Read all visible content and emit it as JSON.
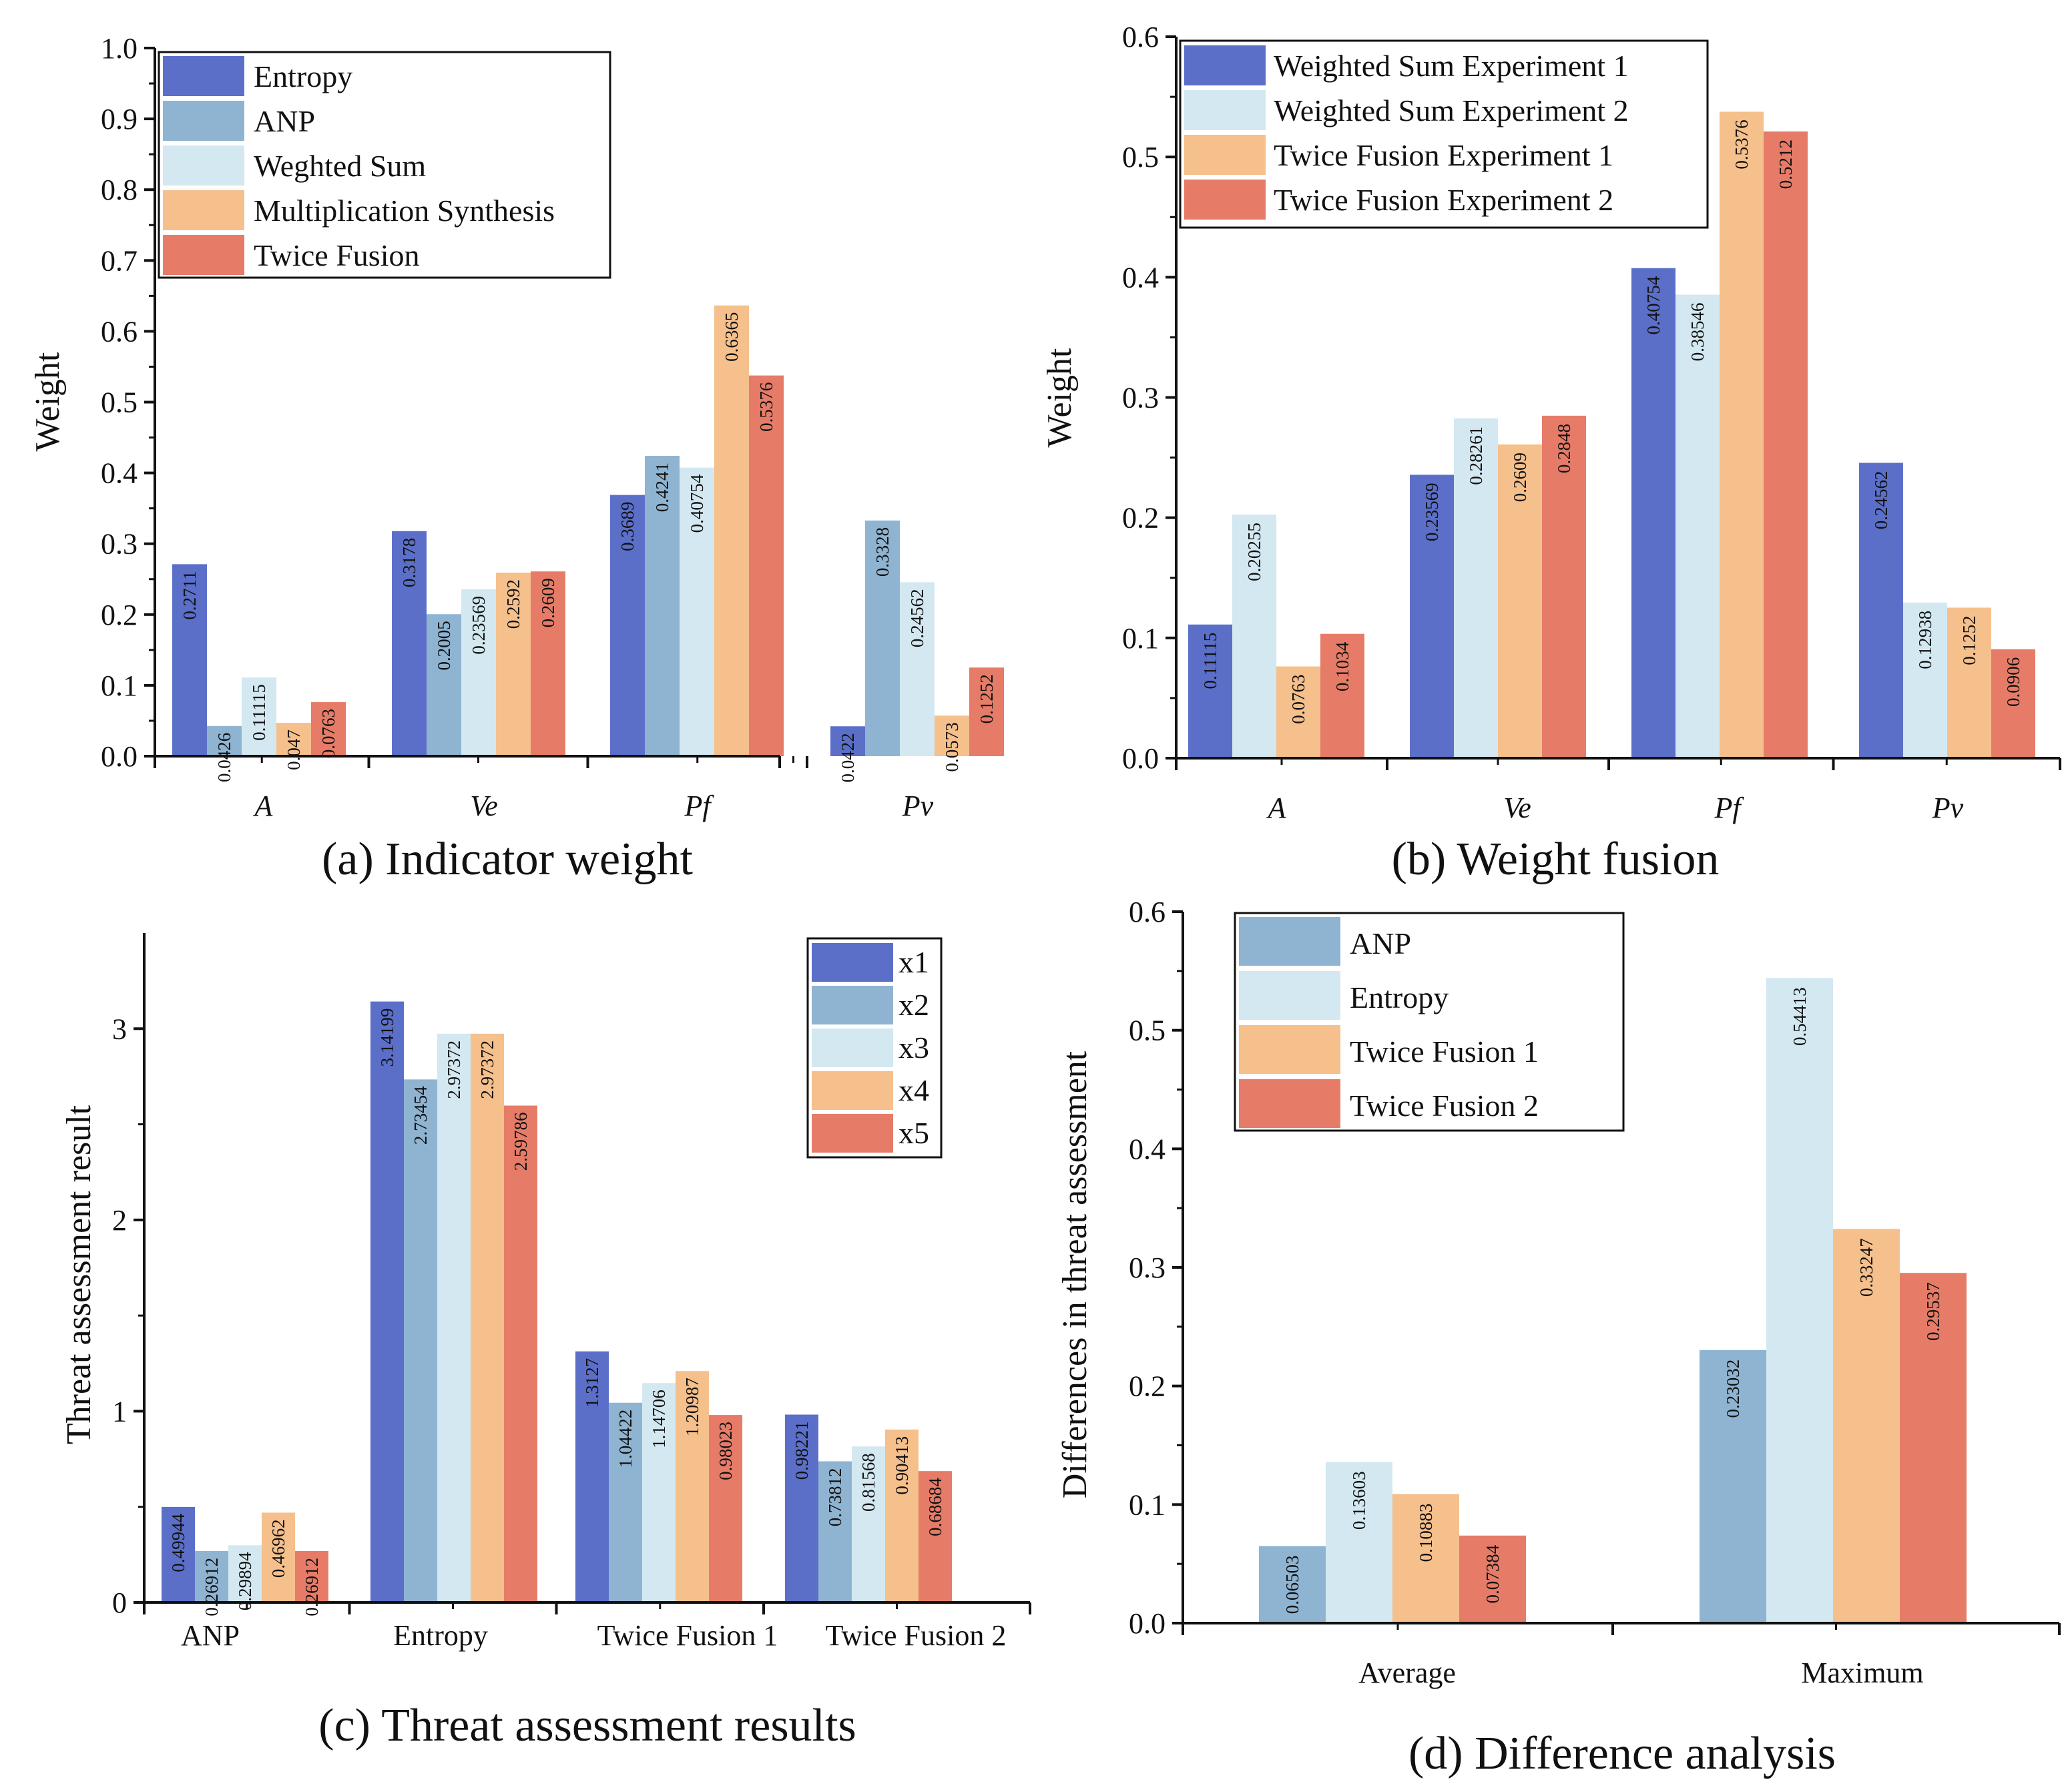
{
  "palette": {
    "blue": "#5b6fc9",
    "steel": "#8fb4d2",
    "pale": "#d3e8f0",
    "peach": "#f5c08c",
    "coral": "#e67c68"
  },
  "chart_data": [
    {
      "id": "a",
      "type": "bar",
      "title": "(a)  Indicator weight",
      "xlabel": "",
      "ylabel": "Weight",
      "ylim": [
        0,
        1.0
      ],
      "yticks": [
        "0.0",
        "0.1",
        "0.2",
        "0.3",
        "0.4",
        "0.5",
        "0.6",
        "0.7",
        "0.8",
        "0.9",
        "1.0"
      ],
      "grid": false,
      "legend_position": "top-left",
      "categories": [
        "A",
        "Ve",
        "Pf",
        "Pv"
      ],
      "series": [
        {
          "name": "Entropy",
          "color": "#5b6fc9",
          "values": [
            0.2711,
            0.3178,
            0.3689,
            0.0422
          ],
          "labels": [
            "0.2711",
            "0.3178",
            "0.3689",
            "0.0422"
          ]
        },
        {
          "name": "ANP",
          "color": "#8fb4d2",
          "values": [
            0.0426,
            0.2005,
            0.4241,
            0.3328
          ],
          "labels": [
            "0.0426",
            "0.2005",
            "0.4241",
            "0.3328"
          ]
        },
        {
          "name": "Weghted Sum",
          "color": "#d3e8f0",
          "values": [
            0.11115,
            0.23569,
            0.40754,
            0.24562
          ],
          "labels": [
            "0.11115",
            "0.23569",
            "0.40754",
            "0.24562"
          ]
        },
        {
          "name": "Multiplication Synthesis",
          "color": "#f5c08c",
          "values": [
            0.047,
            0.2592,
            0.6365,
            0.0573
          ],
          "labels": [
            "0.047",
            "0.2592",
            "0.6365",
            "0.0573"
          ]
        },
        {
          "name": "Twice Fusion",
          "color": "#e67c68",
          "values": [
            0.0763,
            0.2609,
            0.5376,
            0.1252
          ],
          "labels": [
            "0.0763",
            "0.2609",
            "0.5376",
            "0.1252"
          ]
        }
      ]
    },
    {
      "id": "b",
      "type": "bar",
      "title": "(b) Weight fusion",
      "xlabel": "",
      "ylabel": "Weight",
      "ylim": [
        0,
        0.6
      ],
      "yticks": [
        "0.0",
        "0.1",
        "0.2",
        "0.3",
        "0.4",
        "0.5",
        "0.6"
      ],
      "grid": false,
      "legend_position": "top-left",
      "categories": [
        "A",
        "Ve",
        "Pf",
        "Pv"
      ],
      "series": [
        {
          "name": "Weighted Sum Experiment 1",
          "color": "#5b6fc9",
          "values": [
            0.11115,
            0.23569,
            0.40754,
            0.24562
          ],
          "labels": [
            "0.11115",
            "0.23569",
            "0.40754",
            "0.24562"
          ]
        },
        {
          "name": "Weighted Sum Experiment 2",
          "color": "#d3e8f0",
          "values": [
            0.20255,
            0.28261,
            0.38546,
            0.12938
          ],
          "labels": [
            "0.20255",
            "0.28261",
            "0.38546",
            "0.12938"
          ]
        },
        {
          "name": "Twice Fusion Experiment 1",
          "color": "#f5c08c",
          "values": [
            0.0763,
            0.2609,
            0.5376,
            0.1252
          ],
          "labels": [
            "0.0763",
            "0.2609",
            "0.5376",
            "0.1252"
          ]
        },
        {
          "name": "Twice Fusion Experiment 2",
          "color": "#e67c68",
          "values": [
            0.1034,
            0.2848,
            0.5212,
            0.0906
          ],
          "labels": [
            "0.1034",
            "0.2848",
            "0.5212",
            "0.0906"
          ]
        }
      ]
    },
    {
      "id": "c",
      "type": "bar",
      "title": "(c) Threat assessment results",
      "xlabel": "",
      "ylabel": "Threat assessment result",
      "ylim": [
        0,
        3.5
      ],
      "yticks": [
        "0",
        "1",
        "2",
        "3"
      ],
      "grid": false,
      "legend_position": "top-right",
      "categories": [
        "ANP",
        "Entropy",
        "Twice Fusion 1",
        "Twice Fusion 2"
      ],
      "series": [
        {
          "name": "x1",
          "color": "#5b6fc9",
          "values": [
            0.49944,
            3.14199,
            1.3127,
            0.98221
          ],
          "labels": [
            "0.49944",
            "3.14199",
            "1.3127",
            "0.98221"
          ]
        },
        {
          "name": "x2",
          "color": "#8fb4d2",
          "values": [
            0.26912,
            2.73454,
            1.04422,
            0.73812
          ],
          "labels": [
            "0.26912",
            "2.73454",
            "1.04422",
            "0.73812"
          ]
        },
        {
          "name": "x3",
          "color": "#d3e8f0",
          "values": [
            0.29894,
            2.97372,
            1.14706,
            0.81568
          ],
          "labels": [
            "0.29894",
            "2.97372",
            "1.14706",
            "0.81568"
          ]
        },
        {
          "name": "x4",
          "color": "#f5c08c",
          "values": [
            0.46962,
            2.97372,
            1.20987,
            0.90413
          ],
          "labels": [
            "0.46962",
            "2.97372",
            "1.20987",
            "0.90413"
          ]
        },
        {
          "name": "x5",
          "color": "#e67c68",
          "values": [
            0.26912,
            2.59786,
            0.98023,
            0.68684
          ],
          "labels": [
            "0.26912",
            "2.59786",
            "0.98023",
            "0.68684"
          ]
        }
      ]
    },
    {
      "id": "d",
      "type": "bar",
      "title": "(d) Difference analysis",
      "xlabel": "",
      "ylabel": "Differences in threat assessment",
      "ylim": [
        0,
        0.6
      ],
      "yticks": [
        "0.0",
        "0.1",
        "0.2",
        "0.3",
        "0.4",
        "0.5",
        "0.6"
      ],
      "grid": false,
      "legend_position": "top-left",
      "categories": [
        "Average",
        "Maximum"
      ],
      "series": [
        {
          "name": "ANP",
          "color": "#8fb4d2",
          "values": [
            0.06503,
            0.23032
          ],
          "labels": [
            "0.06503",
            "0.23032"
          ]
        },
        {
          "name": "Entropy",
          "color": "#d3e8f0",
          "values": [
            0.13603,
            0.54413
          ],
          "labels": [
            "0.13603",
            "0.54413"
          ]
        },
        {
          "name": "Twice Fusion 1",
          "color": "#f5c08c",
          "values": [
            0.10883,
            0.33247
          ],
          "labels": [
            "0.10883",
            "0.33247"
          ]
        },
        {
          "name": "Twice Fusion 2",
          "color": "#e67c68",
          "values": [
            0.07384,
            0.29537
          ],
          "labels": [
            "0.07384",
            "0.29537"
          ]
        }
      ]
    }
  ]
}
